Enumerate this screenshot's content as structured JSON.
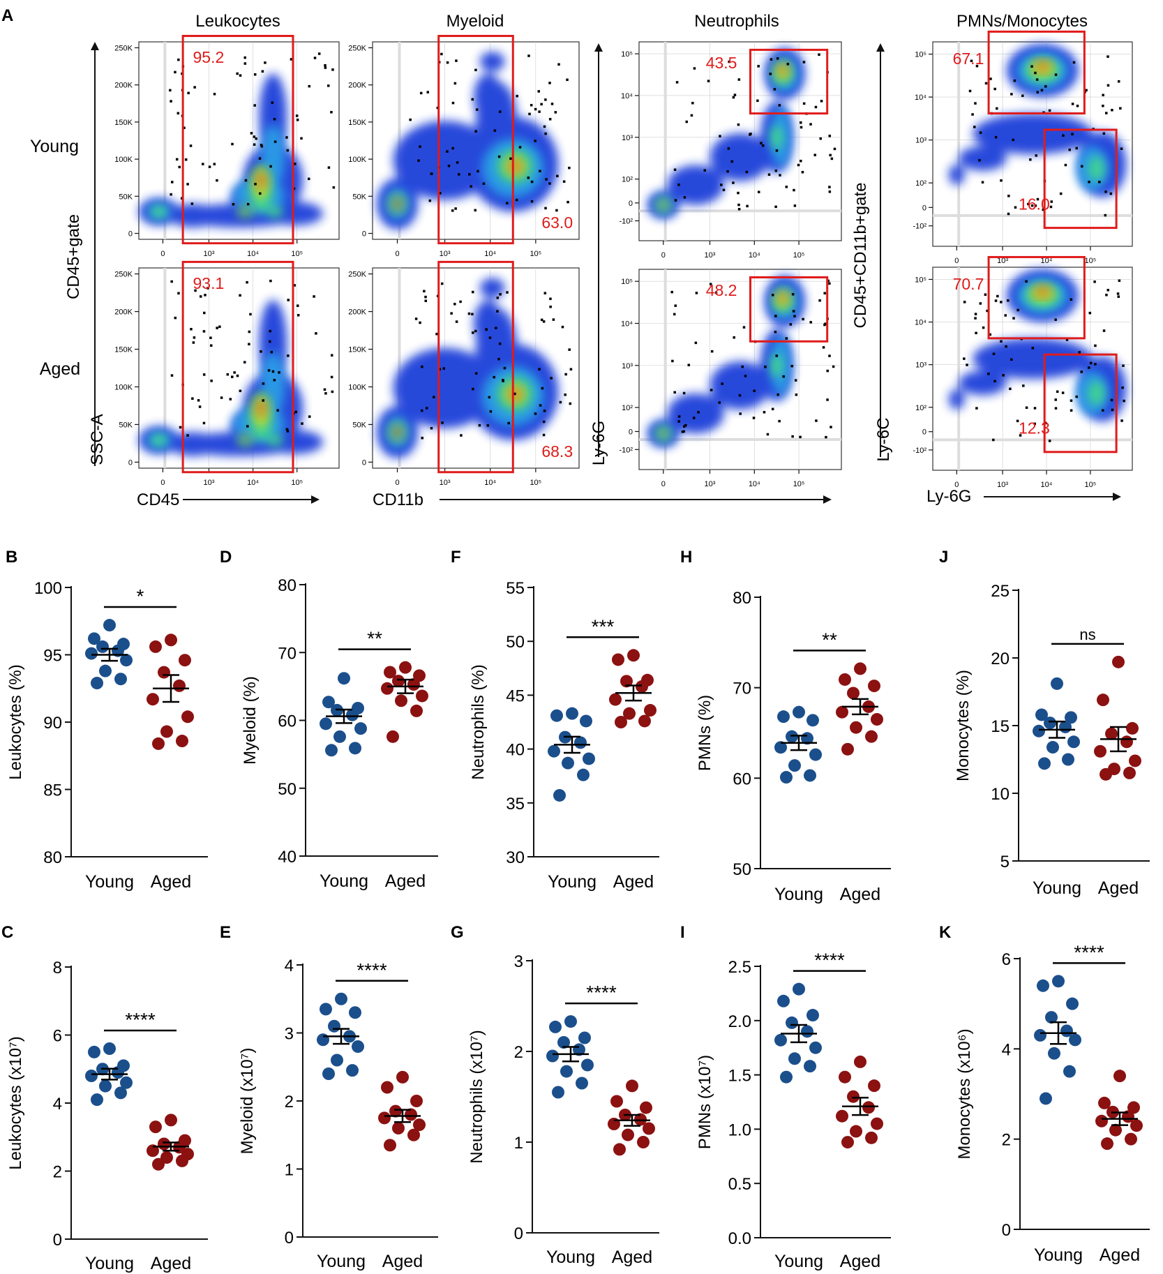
{
  "figure": {
    "colors": {
      "young": "#1b4f8c",
      "aged": "#8c1111",
      "gate": "#e01b1b",
      "axis": "#111111"
    },
    "panel_a": {
      "letter": "A",
      "columns": [
        "Leukocytes",
        "Myeloid",
        "Neutrophils",
        "PMNs/Monocytes"
      ],
      "row_labels": [
        "Young",
        "Aged"
      ],
      "left_axis": {
        "y_label": "SSC-A",
        "gate_label": "CD45+gate",
        "x_label": "CD45"
      },
      "myeloid_x_label": "CD11b",
      "neutro_y_label": "Ly-6G",
      "pmn_axis": {
        "y_label": "Ly-6C",
        "gate_label": "CD45+CD11b+gate",
        "x_label": "Ly-6G"
      },
      "linear_y_ticks": [
        "250K",
        "200K",
        "150K",
        "100K",
        "50K",
        "0"
      ],
      "log_x_ticks": [
        "0",
        "10³",
        "10⁴",
        "10⁵"
      ],
      "log_y_ticks": [
        "10⁵",
        "10⁴",
        "10³",
        "10²",
        "0",
        "-10²"
      ],
      "gate_values": {
        "leukocytes": [
          "95.2",
          "93.1"
        ],
        "myeloid": [
          "63.0",
          "68.3"
        ],
        "neutrophils": [
          "43.5",
          "48.2"
        ],
        "pmn": [
          "67.1",
          "70.7"
        ],
        "mono": [
          "16.0",
          "12.3"
        ]
      }
    }
  },
  "chart_data": [
    {
      "id": "B",
      "type": "scatter",
      "ylabel": "Leukocytes (%)",
      "ylim": [
        80,
        100
      ],
      "yticks": [
        "80",
        "85",
        "90",
        "95",
        "100"
      ],
      "categories": [
        "Young",
        "Aged"
      ],
      "significance": "*",
      "series": [
        {
          "name": "Young",
          "values": [
            97.2,
            96.2,
            95.8,
            95.6,
            95.3,
            95.1,
            94.6,
            93.8,
            93.2,
            92.9
          ],
          "mean": 95.0,
          "sem": 0.45
        },
        {
          "name": "Aged",
          "values": [
            96.1,
            95.6,
            94.6,
            93.7,
            92.7,
            91.7,
            90.4,
            89.3,
            88.6,
            88.4
          ],
          "mean": 92.5,
          "sem": 1.0
        }
      ]
    },
    {
      "id": "D",
      "type": "scatter",
      "ylabel": "Myeloid (%)",
      "ylim": [
        40,
        80
      ],
      "yticks": [
        "40",
        "50",
        "60",
        "70",
        "80"
      ],
      "categories": [
        "Young",
        "Aged"
      ],
      "significance": "**",
      "series": [
        {
          "name": "Young",
          "values": [
            66.2,
            62.7,
            61.8,
            61.5,
            60.8,
            59.5,
            58.8,
            57.6,
            55.9,
            55.6
          ],
          "mean": 60.6,
          "sem": 1.0
        },
        {
          "name": "Aged",
          "values": [
            67.8,
            67.1,
            66.6,
            65.8,
            65.3,
            64.7,
            63.6,
            62.9,
            61.4,
            57.6
          ],
          "mean": 65.0,
          "sem": 1.0
        }
      ]
    },
    {
      "id": "F",
      "type": "scatter",
      "ylabel": "Neutrophils (%)",
      "ylim": [
        30,
        55
      ],
      "yticks": [
        "30",
        "35",
        "40",
        "45",
        "50",
        "55"
      ],
      "categories": [
        "Young",
        "Aged"
      ],
      "significance": "***",
      "series": [
        {
          "name": "Young",
          "values": [
            43.3,
            43.1,
            42.6,
            41.1,
            40.6,
            39.8,
            39.1,
            38.7,
            37.6,
            35.7
          ],
          "mean": 40.4,
          "sem": 0.75
        },
        {
          "name": "Aged",
          "values": [
            48.7,
            48.3,
            46.4,
            46.3,
            45.8,
            44.6,
            43.6,
            43.3,
            42.6,
            42.5
          ],
          "mean": 45.2,
          "sem": 0.7
        }
      ]
    },
    {
      "id": "H",
      "type": "scatter",
      "ylabel": "PMNs (%)",
      "ylim": [
        50,
        80
      ],
      "yticks": [
        "50",
        "60",
        "70",
        "80"
      ],
      "categories": [
        "Young",
        "Aged"
      ],
      "significance": "**",
      "series": [
        {
          "name": "Young",
          "values": [
            67.3,
            66.8,
            66.4,
            64.6,
            64.4,
            63.4,
            62.6,
            61.4,
            60.3,
            60.1
          ],
          "mean": 63.9,
          "sem": 0.8
        },
        {
          "name": "Aged",
          "values": [
            72.1,
            70.9,
            70.2,
            69.4,
            67.9,
            67.3,
            66.5,
            65.6,
            64.6,
            63.2
          ],
          "mean": 67.9,
          "sem": 0.85
        }
      ]
    },
    {
      "id": "J",
      "type": "scatter",
      "ylabel": "Monocytes (%)",
      "ylim": [
        5,
        25
      ],
      "yticks": [
        "5",
        "10",
        "15",
        "20",
        "25"
      ],
      "categories": [
        "Young",
        "Aged"
      ],
      "significance": "ns",
      "series": [
        {
          "name": "Young",
          "values": [
            18.1,
            15.8,
            15.6,
            15.2,
            14.9,
            14.6,
            13.8,
            13.4,
            12.5,
            12.2
          ],
          "mean": 14.7,
          "sem": 0.6
        },
        {
          "name": "Aged",
          "values": [
            19.7,
            16.9,
            14.8,
            14.4,
            13.8,
            13.1,
            12.4,
            11.8,
            11.5,
            11.4
          ],
          "mean": 14.0,
          "sem": 0.9
        }
      ]
    },
    {
      "id": "C",
      "type": "scatter",
      "ylabel": "Leukocytes (x10⁷)",
      "ylim": [
        0,
        8
      ],
      "yticks": [
        "0",
        "2",
        "4",
        "6",
        "8"
      ],
      "categories": [
        "Young",
        "Aged"
      ],
      "significance": "****",
      "series": [
        {
          "name": "Young",
          "values": [
            5.6,
            5.5,
            5.1,
            5.0,
            4.9,
            4.8,
            4.6,
            4.5,
            4.3,
            4.1
          ],
          "mean": 4.85,
          "sem": 0.16
        },
        {
          "name": "Aged",
          "values": [
            3.5,
            3.3,
            2.9,
            2.8,
            2.7,
            2.6,
            2.5,
            2.4,
            2.3,
            2.2
          ],
          "mean": 2.72,
          "sem": 0.12
        }
      ]
    },
    {
      "id": "E",
      "type": "scatter",
      "ylabel": "Myeloid (x10⁷)",
      "ylim": [
        0,
        4
      ],
      "yticks": [
        "0",
        "1",
        "2",
        "3",
        "4"
      ],
      "categories": [
        "Young",
        "Aged"
      ],
      "significance": "****",
      "series": [
        {
          "name": "Young",
          "values": [
            3.5,
            3.35,
            3.3,
            3.1,
            2.95,
            2.9,
            2.8,
            2.6,
            2.45,
            2.4
          ],
          "mean": 2.95,
          "sem": 0.11
        },
        {
          "name": "Aged",
          "values": [
            2.35,
            2.2,
            2.0,
            1.85,
            1.8,
            1.75,
            1.65,
            1.6,
            1.5,
            1.35
          ],
          "mean": 1.78,
          "sem": 0.09
        }
      ]
    },
    {
      "id": "G",
      "type": "scatter",
      "ylabel": "Neutrophils (x10⁷)",
      "ylim": [
        0,
        3
      ],
      "yticks": [
        "0",
        "1",
        "2",
        "3"
      ],
      "categories": [
        "Young",
        "Aged"
      ],
      "significance": "****",
      "series": [
        {
          "name": "Young",
          "values": [
            2.33,
            2.27,
            2.15,
            2.1,
            2.02,
            1.95,
            1.85,
            1.78,
            1.65,
            1.55
          ],
          "mean": 1.97,
          "sem": 0.08
        },
        {
          "name": "Aged",
          "values": [
            1.62,
            1.45,
            1.38,
            1.3,
            1.25,
            1.2,
            1.15,
            1.08,
            1.0,
            0.92
          ],
          "mean": 1.24,
          "sem": 0.06
        }
      ]
    },
    {
      "id": "I",
      "type": "scatter",
      "ylabel": "PMNs (x10⁷)",
      "ylim": [
        0,
        2.5
      ],
      "yticks": [
        "0.0",
        "0.5",
        "1.0",
        "1.5",
        "2.0",
        "2.5"
      ],
      "categories": [
        "Young",
        "Aged"
      ],
      "significance": "****",
      "series": [
        {
          "name": "Young",
          "values": [
            2.29,
            2.18,
            2.05,
            1.98,
            1.9,
            1.82,
            1.75,
            1.65,
            1.58,
            1.48
          ],
          "mean": 1.88,
          "sem": 0.08
        },
        {
          "name": "Aged",
          "values": [
            1.62,
            1.48,
            1.4,
            1.3,
            1.2,
            1.12,
            1.05,
            0.98,
            0.92,
            0.88
          ],
          "mean": 1.21,
          "sem": 0.08
        }
      ]
    },
    {
      "id": "K",
      "type": "scatter",
      "ylabel": "Monocytes (x10⁶)",
      "ylim": [
        0,
        6
      ],
      "yticks": [
        "0",
        "2",
        "4",
        "6"
      ],
      "categories": [
        "Young",
        "Aged"
      ],
      "significance": "****",
      "series": [
        {
          "name": "Young",
          "values": [
            5.5,
            5.4,
            5.0,
            4.7,
            4.4,
            4.3,
            4.2,
            3.9,
            3.5,
            2.9
          ],
          "mean": 4.35,
          "sem": 0.24
        },
        {
          "name": "Aged",
          "values": [
            3.4,
            2.8,
            2.7,
            2.6,
            2.5,
            2.4,
            2.3,
            2.2,
            2.0,
            1.9
          ],
          "mean": 2.45,
          "sem": 0.14
        }
      ]
    }
  ]
}
